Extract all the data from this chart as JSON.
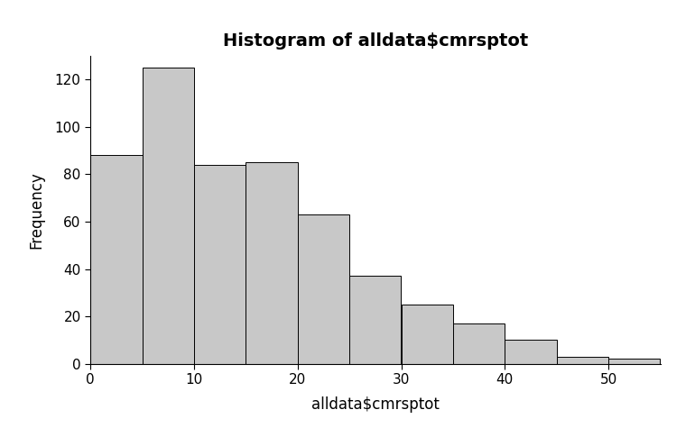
{
  "title": "Histogram of alldata$cmrsptot",
  "xlabel": "alldata$cmrsptot",
  "ylabel": "Frequency",
  "bar_edges": [
    0,
    5,
    10,
    15,
    20,
    25,
    30,
    35,
    40,
    45,
    50,
    55
  ],
  "bar_heights": [
    88,
    125,
    84,
    85,
    63,
    37,
    25,
    17,
    10,
    3,
    2
  ],
  "bar_color": "#c8c8c8",
  "bar_edgecolor": "#000000",
  "xlim": [
    0,
    55
  ],
  "ylim": [
    0,
    130
  ],
  "yticks": [
    0,
    20,
    40,
    60,
    80,
    100,
    120
  ],
  "xticks": [
    0,
    10,
    20,
    30,
    40,
    50
  ],
  "title_fontsize": 14,
  "axis_label_fontsize": 12,
  "tick_fontsize": 11,
  "background_color": "#ffffff",
  "title_fontweight": "bold"
}
